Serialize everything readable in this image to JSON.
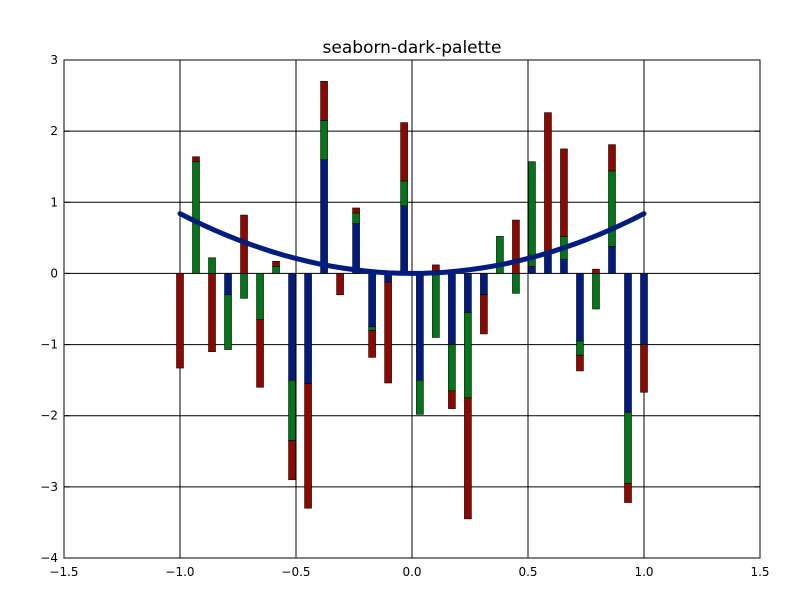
{
  "chart_data": {
    "type": "bar",
    "title": "seaborn-dark-palette",
    "xlabel": "",
    "ylabel": "",
    "xlim": [
      -1.5,
      1.5
    ],
    "ylim": [
      -4,
      3
    ],
    "x_ticks": [
      -1.5,
      -1.0,
      -0.5,
      0.0,
      0.5,
      1.0,
      1.5
    ],
    "x_tick_labels": [
      "−1.5",
      "−1.0",
      "−0.5",
      "0.0",
      "0.5",
      "1.0",
      "1.5"
    ],
    "y_ticks": [
      -4,
      -3,
      -2,
      -1,
      0,
      1,
      2,
      3
    ],
    "y_tick_labels": [
      "−4",
      "−3",
      "−2",
      "−1",
      "0",
      "1",
      "2",
      "3"
    ],
    "grid": true,
    "stacked": true,
    "bar_width": 0.03,
    "colors": {
      "blue": "#001c7f",
      "green": "#017517",
      "red": "#8c0900",
      "line": "#001c7f"
    },
    "x": [
      -1.0,
      -0.931,
      -0.862,
      -0.793,
      -0.724,
      -0.655,
      -0.586,
      -0.517,
      -0.448,
      -0.379,
      -0.31,
      -0.241,
      -0.172,
      -0.103,
      -0.034,
      0.034,
      0.103,
      0.172,
      0.241,
      0.31,
      0.379,
      0.448,
      0.517,
      0.586,
      0.655,
      0.724,
      0.793,
      0.862,
      0.931,
      1.0
    ],
    "series": [
      {
        "color": "blue",
        "values": [
          0,
          0,
          0,
          -0.3,
          0,
          0,
          0,
          -1.5,
          -1.55,
          1.6,
          0,
          0.7,
          -0.75,
          -0.12,
          0.95,
          -1.5,
          0,
          -1.0,
          -0.55,
          -0.3,
          0,
          0,
          0.1,
          0.28,
          0.2,
          -0.95,
          0,
          0.38,
          -1.95,
          -1.0
        ]
      },
      {
        "color": "green",
        "values": [
          0,
          1.57,
          0.22,
          -0.77,
          -0.35,
          -0.65,
          0.1,
          -0.85,
          0,
          0.55,
          0,
          0.15,
          -0.05,
          0,
          0.35,
          -0.48,
          -0.9,
          -0.65,
          -1.2,
          0,
          0.52,
          -0.28,
          1.47,
          0,
          0.32,
          -0.2,
          -0.5,
          1.06,
          -1.0,
          0
        ]
      },
      {
        "color": "red",
        "values": [
          -1.33,
          0.07,
          -1.1,
          0,
          0.82,
          -0.95,
          0.07,
          -0.55,
          -1.75,
          0.55,
          -0.3,
          0.07,
          -0.38,
          -1.42,
          0.82,
          0,
          0.12,
          -0.25,
          -1.7,
          -0.55,
          0,
          0.75,
          0,
          1.98,
          1.23,
          -0.22,
          0.06,
          0.37,
          -0.27,
          -0.67
        ]
      }
    ],
    "line": {
      "x": [
        -1.0,
        -0.95,
        -0.9,
        -0.85,
        -0.8,
        -0.75,
        -0.7,
        -0.65,
        -0.6,
        -0.55,
        -0.5,
        -0.45,
        -0.4,
        -0.35,
        -0.3,
        -0.25,
        -0.2,
        -0.15,
        -0.1,
        -0.05,
        0.0,
        0.05,
        0.1,
        0.15,
        0.2,
        0.25,
        0.3,
        0.35,
        0.4,
        0.45,
        0.5,
        0.55,
        0.6,
        0.65,
        0.7,
        0.75,
        0.8,
        0.85,
        0.9,
        0.95,
        1.0
      ],
      "y": [
        0.84,
        0.758,
        0.681,
        0.607,
        0.538,
        0.473,
        0.412,
        0.355,
        0.302,
        0.254,
        0.21,
        0.17,
        0.134,
        0.103,
        0.076,
        0.053,
        0.034,
        0.019,
        0.008,
        0.002,
        0.0,
        0.002,
        0.008,
        0.019,
        0.034,
        0.053,
        0.076,
        0.103,
        0.134,
        0.17,
        0.21,
        0.254,
        0.302,
        0.355,
        0.412,
        0.473,
        0.538,
        0.607,
        0.681,
        0.758,
        0.84
      ]
    }
  }
}
